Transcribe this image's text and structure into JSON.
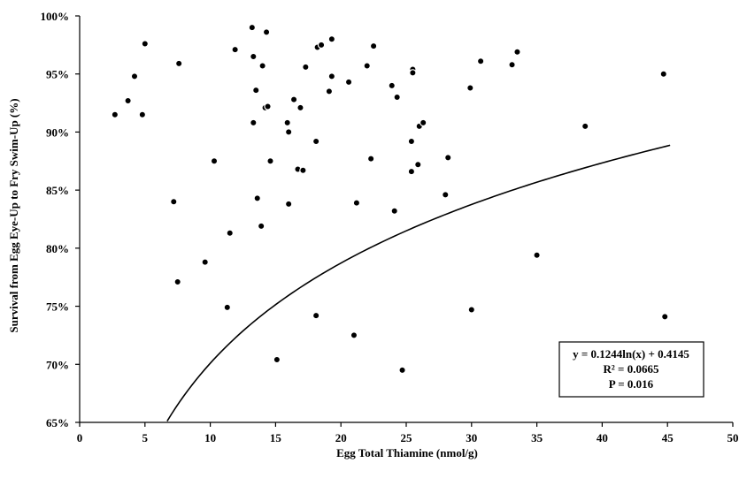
{
  "chart_data": {
    "type": "scatter",
    "xlabel": "Egg Total Thiamine (nmol/g)",
    "ylabel": "Survival from Egg Eye-Up to Fry Swim-Up (%)",
    "xlim": [
      0,
      50
    ],
    "ylim": [
      65,
      100
    ],
    "x_ticks": [
      "0",
      "5",
      "10",
      "15",
      "20",
      "25",
      "30",
      "35",
      "40",
      "45",
      "50"
    ],
    "y_ticks": [
      "65%",
      "70%",
      "75%",
      "80%",
      "85%",
      "90%",
      "95%",
      "100%"
    ],
    "grid": false,
    "points": [
      {
        "x": 2.7,
        "y": 91.5
      },
      {
        "x": 3.7,
        "y": 92.7
      },
      {
        "x": 4.2,
        "y": 94.8
      },
      {
        "x": 4.8,
        "y": 91.5
      },
      {
        "x": 5.0,
        "y": 97.6
      },
      {
        "x": 7.2,
        "y": 84.0
      },
      {
        "x": 7.5,
        "y": 77.1
      },
      {
        "x": 7.6,
        "y": 95.9
      },
      {
        "x": 9.6,
        "y": 78.8
      },
      {
        "x": 10.3,
        "y": 87.5
      },
      {
        "x": 11.3,
        "y": 74.9
      },
      {
        "x": 11.5,
        "y": 81.3
      },
      {
        "x": 11.9,
        "y": 97.1
      },
      {
        "x": 13.2,
        "y": 99.0
      },
      {
        "x": 13.3,
        "y": 96.5
      },
      {
        "x": 13.3,
        "y": 90.8
      },
      {
        "x": 13.5,
        "y": 93.6
      },
      {
        "x": 13.6,
        "y": 84.3
      },
      {
        "x": 13.9,
        "y": 81.9
      },
      {
        "x": 14.0,
        "y": 95.7
      },
      {
        "x": 14.2,
        "y": 92.1
      },
      {
        "x": 14.3,
        "y": 98.6
      },
      {
        "x": 14.4,
        "y": 92.2
      },
      {
        "x": 14.6,
        "y": 87.5
      },
      {
        "x": 15.1,
        "y": 70.4
      },
      {
        "x": 15.9,
        "y": 90.8
      },
      {
        "x": 16.0,
        "y": 90.0
      },
      {
        "x": 16.0,
        "y": 83.8
      },
      {
        "x": 16.4,
        "y": 92.8
      },
      {
        "x": 16.7,
        "y": 86.8
      },
      {
        "x": 16.9,
        "y": 92.1
      },
      {
        "x": 17.1,
        "y": 86.7
      },
      {
        "x": 17.3,
        "y": 95.6
      },
      {
        "x": 18.1,
        "y": 89.2
      },
      {
        "x": 18.1,
        "y": 74.2
      },
      {
        "x": 18.2,
        "y": 97.3
      },
      {
        "x": 18.5,
        "y": 97.5
      },
      {
        "x": 19.1,
        "y": 93.5
      },
      {
        "x": 19.3,
        "y": 94.8
      },
      {
        "x": 19.3,
        "y": 98.0
      },
      {
        "x": 20.6,
        "y": 94.3
      },
      {
        "x": 21.0,
        "y": 72.5
      },
      {
        "x": 21.2,
        "y": 83.9
      },
      {
        "x": 22.0,
        "y": 95.7
      },
      {
        "x": 22.3,
        "y": 87.7
      },
      {
        "x": 22.5,
        "y": 97.4
      },
      {
        "x": 23.9,
        "y": 94.0
      },
      {
        "x": 24.1,
        "y": 83.2
      },
      {
        "x": 24.3,
        "y": 93.0
      },
      {
        "x": 24.7,
        "y": 69.5
      },
      {
        "x": 25.4,
        "y": 89.2
      },
      {
        "x": 25.4,
        "y": 86.6
      },
      {
        "x": 25.5,
        "y": 95.4
      },
      {
        "x": 25.5,
        "y": 95.1
      },
      {
        "x": 25.9,
        "y": 87.2
      },
      {
        "x": 26.0,
        "y": 90.5
      },
      {
        "x": 26.3,
        "y": 90.8
      },
      {
        "x": 28.0,
        "y": 84.6
      },
      {
        "x": 28.2,
        "y": 87.8
      },
      {
        "x": 29.9,
        "y": 93.8
      },
      {
        "x": 30.0,
        "y": 74.7
      },
      {
        "x": 30.7,
        "y": 96.1
      },
      {
        "x": 33.1,
        "y": 95.8
      },
      {
        "x": 33.5,
        "y": 96.9
      },
      {
        "x": 35.0,
        "y": 79.4
      },
      {
        "x": 38.7,
        "y": 90.5
      },
      {
        "x": 44.7,
        "y": 95.0
      },
      {
        "x": 44.8,
        "y": 74.1
      }
    ],
    "trendline": {
      "type": "logarithmic",
      "a": 0.1244,
      "b": 0.4145,
      "x_range": [
        6.7,
        45.2
      ]
    },
    "annotation": {
      "line1": "y = 0.1244ln(x) + 0.4145",
      "line2": "R² = 0.0665",
      "line3": "P = 0.016",
      "placement": "bottom-right"
    }
  }
}
